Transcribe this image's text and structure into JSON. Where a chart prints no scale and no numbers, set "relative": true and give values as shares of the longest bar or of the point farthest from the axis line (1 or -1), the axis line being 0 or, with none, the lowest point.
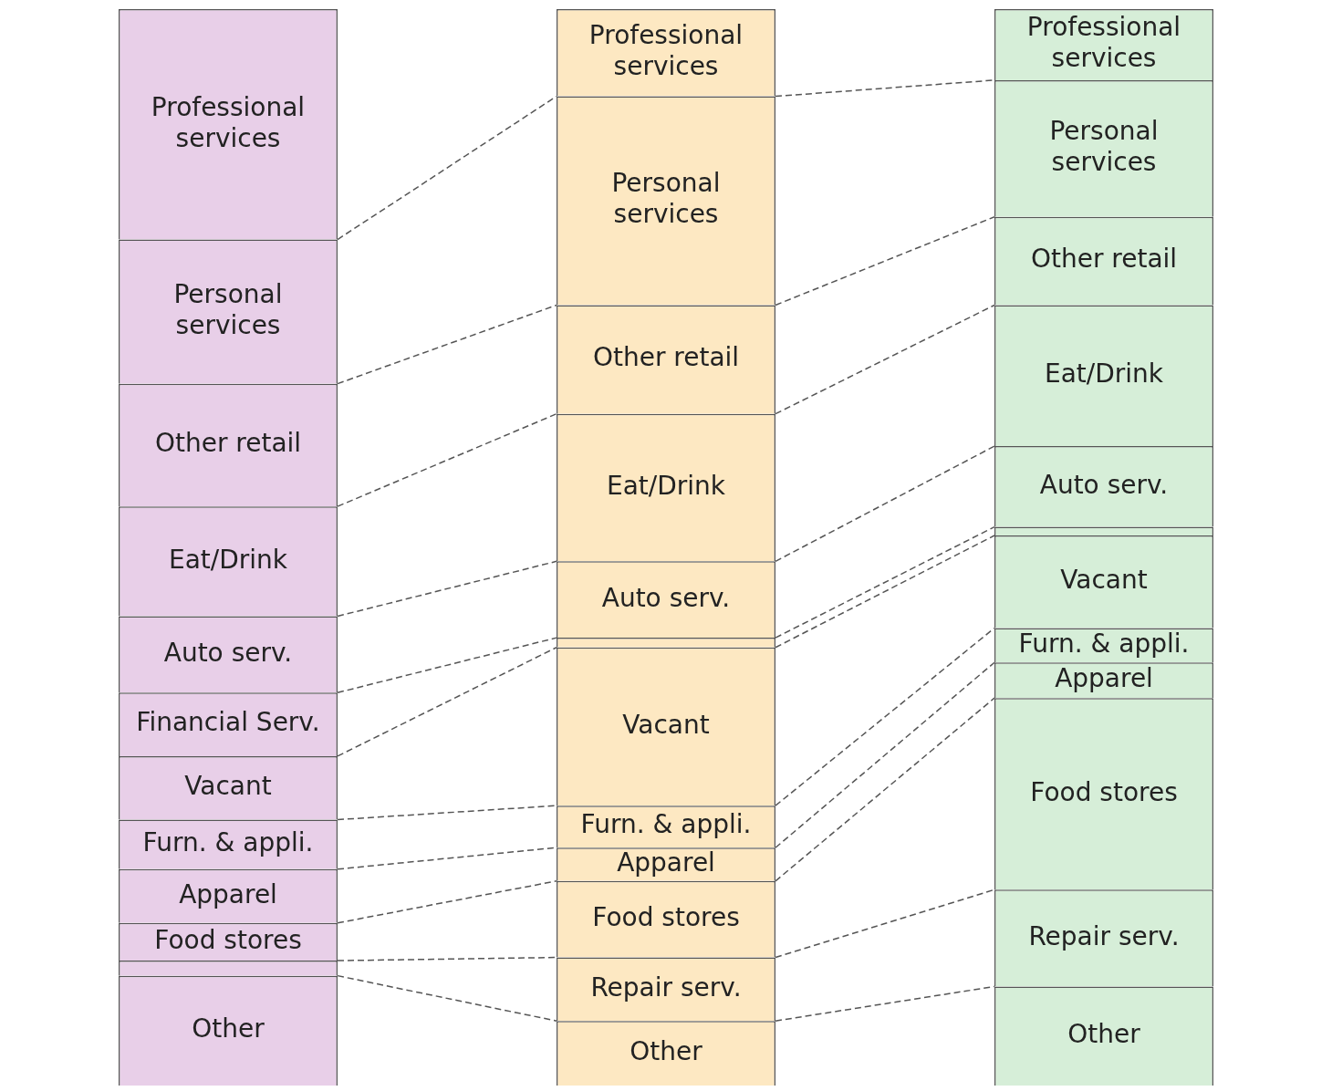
{
  "chart_data": {
    "type": "bar",
    "stacked": true,
    "relative": true,
    "legend": false,
    "categories": [
      null,
      null,
      null
    ],
    "series": [
      {
        "name": "Other",
        "colors": [
          "#e8cfe8",
          "#fde8c2",
          "#d6eed8"
        ],
        "values": [
          0.102,
          0.06,
          0.092
        ]
      },
      {
        "name": "Repair serv.",
        "colors": [
          "#e8cfe8",
          "#fde8c2",
          "#d6eed8"
        ],
        "values": [
          0.014,
          0.059,
          0.09
        ]
      },
      {
        "name": "Food stores",
        "colors": [
          "#e8cfe8",
          "#fde8c2",
          "#d6eed8"
        ],
        "values": [
          0.035,
          0.071,
          0.178
        ]
      },
      {
        "name": "Apparel",
        "colors": [
          "#e8cfe8",
          "#fde8c2",
          "#d6eed8"
        ],
        "values": [
          0.05,
          0.031,
          0.033
        ]
      },
      {
        "name": "Furn. & appli.",
        "colors": [
          "#e8cfe8",
          "#fde8c2",
          "#d6eed8"
        ],
        "values": [
          0.046,
          0.039,
          0.032
        ]
      },
      {
        "name": "Vacant",
        "colors": [
          "#e8cfe8",
          "#fde8c2",
          "#d6eed8"
        ],
        "values": [
          0.059,
          0.147,
          0.086
        ]
      },
      {
        "name": "Financial Serv.",
        "colors": [
          "#e8cfe8",
          "#fde8c2",
          "#d6eed8"
        ],
        "values": [
          0.059,
          0.009,
          0.008
        ]
      },
      {
        "name": "Auto serv.",
        "colors": [
          "#e8cfe8",
          "#fde8c2",
          "#d6eed8"
        ],
        "values": [
          0.071,
          0.071,
          0.075
        ]
      },
      {
        "name": "Eat/Drink",
        "colors": [
          "#e8cfe8",
          "#fde8c2",
          "#d6eed8"
        ],
        "values": [
          0.102,
          0.137,
          0.131
        ]
      },
      {
        "name": "Other retail",
        "colors": [
          "#e8cfe8",
          "#fde8c2",
          "#d6eed8"
        ],
        "values": [
          0.114,
          0.101,
          0.082
        ]
      },
      {
        "name": "Personal services",
        "colors": [
          "#e8cfe8",
          "#fde8c2",
          "#d6eed8"
        ],
        "values": [
          0.134,
          0.194,
          0.127
        ]
      },
      {
        "name": "Professional services",
        "colors": [
          "#e8cfe8",
          "#fde8c2",
          "#d6eed8"
        ],
        "values": [
          0.214,
          0.081,
          0.066
        ]
      }
    ]
  }
}
